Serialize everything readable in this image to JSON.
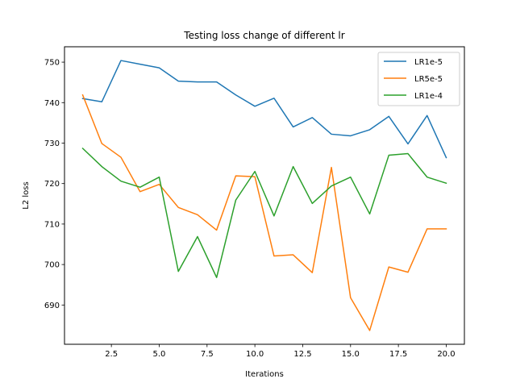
{
  "chart_data": {
    "type": "line",
    "title": "Testing loss change of different lr",
    "xlabel": "Iterations",
    "ylabel": "L2 loss",
    "xlim": [
      0.05,
      20.95
    ],
    "ylim": [
      680.3,
      753.8
    ],
    "xticks": [
      2.5,
      5.0,
      7.5,
      10.0,
      12.5,
      15.0,
      17.5,
      20.0
    ],
    "xtick_labels": [
      "2.5",
      "5.0",
      "7.5",
      "10.0",
      "12.5",
      "15.0",
      "17.5",
      "20.0"
    ],
    "yticks": [
      690,
      700,
      710,
      720,
      730,
      740,
      750
    ],
    "ytick_labels": [
      "690",
      "700",
      "710",
      "720",
      "730",
      "740",
      "750"
    ],
    "grid": false,
    "legend_position": "top-right",
    "x": [
      1,
      2,
      3,
      4,
      5,
      6,
      7,
      8,
      9,
      10,
      11,
      12,
      13,
      14,
      15,
      16,
      17,
      18,
      19,
      20
    ],
    "series": [
      {
        "name": "LR1e-5",
        "color": "#1f77b4",
        "values": [
          741.0,
          740.2,
          750.4,
          749.5,
          748.6,
          745.3,
          745.1,
          745.1,
          741.9,
          739.1,
          741.1,
          734.0,
          736.3,
          732.2,
          731.8,
          733.3,
          736.6,
          729.8,
          736.8,
          726.4
        ]
      },
      {
        "name": "LR5e-5",
        "color": "#ff7f0e",
        "values": [
          741.9,
          729.9,
          726.5,
          718.0,
          719.8,
          714.1,
          712.3,
          708.5,
          721.9,
          721.7,
          702.1,
          702.4,
          698.0,
          724.0,
          691.8,
          683.7,
          699.4,
          698.1,
          708.8,
          708.8
        ]
      },
      {
        "name": "LR1e-4",
        "color": "#2ca02c",
        "values": [
          728.7,
          724.2,
          720.6,
          719.1,
          721.6,
          698.3,
          706.9,
          696.8,
          715.9,
          723.0,
          712.0,
          724.2,
          715.1,
          719.4,
          721.6,
          712.5,
          727.0,
          727.4,
          721.6,
          720.1
        ]
      }
    ]
  }
}
